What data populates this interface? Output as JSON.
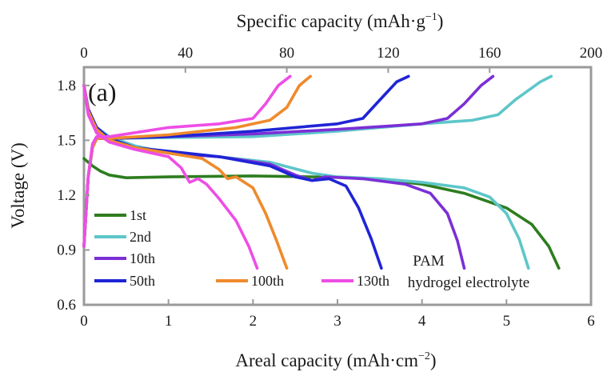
{
  "chart_data": {
    "type": "line",
    "panel_label": "(a)",
    "xlabel": "Areal capacity (mAh·cm",
    "xlabel_sup": "−2",
    "xlabel_end": ")",
    "x2label": "Specific capacity  (mAh·g",
    "x2label_sup": "−1",
    "x2label_end": ")",
    "ylabel": "Voltage (V)",
    "xlim": [
      0,
      6
    ],
    "x2lim": [
      0,
      200
    ],
    "ylim": [
      0.6,
      1.9
    ],
    "xticks": [
      0,
      1,
      2,
      3,
      4,
      5,
      6
    ],
    "x2ticks": [
      0,
      40,
      80,
      120,
      160,
      200
    ],
    "yticks": [
      "0.6",
      "0.9",
      "1.2",
      "1.5",
      "1.8"
    ],
    "annotations": [
      "PAM",
      "hydrogel electrolyte"
    ],
    "series": [
      {
        "name": "1st",
        "color": "#2e7d1f",
        "discharge": [
          [
            0,
            1.4
          ],
          [
            0.1,
            1.36
          ],
          [
            0.2,
            1.33
          ],
          [
            0.3,
            1.31
          ],
          [
            0.5,
            1.295
          ],
          [
            1,
            1.3
          ],
          [
            2,
            1.305
          ],
          [
            3,
            1.298
          ],
          [
            3.5,
            1.285
          ],
          [
            4,
            1.26
          ],
          [
            4.5,
            1.21
          ],
          [
            5,
            1.13
          ],
          [
            5.3,
            1.04
          ],
          [
            5.5,
            0.92
          ],
          [
            5.62,
            0.8
          ]
        ],
        "charge": []
      },
      {
        "name": "2nd",
        "color": "#5ec6c9",
        "discharge": [
          [
            0,
            1.8
          ],
          [
            0.05,
            1.67
          ],
          [
            0.15,
            1.57
          ],
          [
            0.3,
            1.52
          ],
          [
            0.6,
            1.47
          ],
          [
            1,
            1.43
          ],
          [
            1.6,
            1.41
          ],
          [
            2.2,
            1.38
          ],
          [
            2.7,
            1.32
          ],
          [
            3,
            1.3
          ],
          [
            3.5,
            1.29
          ],
          [
            4,
            1.27
          ],
          [
            4.5,
            1.24
          ],
          [
            4.8,
            1.19
          ],
          [
            5,
            1.1
          ],
          [
            5.15,
            0.96
          ],
          [
            5.26,
            0.8
          ]
        ],
        "charge": [
          [
            0,
            0.92
          ],
          [
            0.05,
            1.3
          ],
          [
            0.1,
            1.46
          ],
          [
            0.15,
            1.51
          ],
          [
            0.3,
            1.51
          ],
          [
            1,
            1.515
          ],
          [
            2,
            1.52
          ],
          [
            3,
            1.55
          ],
          [
            4,
            1.59
          ],
          [
            4.6,
            1.61
          ],
          [
            4.9,
            1.64
          ],
          [
            5.1,
            1.72
          ],
          [
            5.4,
            1.82
          ],
          [
            5.53,
            1.85
          ]
        ]
      },
      {
        "name": "10th",
        "color": "#7b2fd6",
        "discharge": [
          [
            0,
            1.8
          ],
          [
            0.05,
            1.67
          ],
          [
            0.15,
            1.57
          ],
          [
            0.3,
            1.51
          ],
          [
            0.6,
            1.46
          ],
          [
            1,
            1.43
          ],
          [
            1.6,
            1.41
          ],
          [
            2.2,
            1.37
          ],
          [
            2.5,
            1.31
          ],
          [
            2.7,
            1.28
          ],
          [
            2.85,
            1.3
          ],
          [
            3.3,
            1.29
          ],
          [
            3.8,
            1.26
          ],
          [
            4.1,
            1.21
          ],
          [
            4.3,
            1.1
          ],
          [
            4.42,
            0.95
          ],
          [
            4.5,
            0.8
          ]
        ],
        "charge": [
          [
            0,
            0.92
          ],
          [
            0.05,
            1.3
          ],
          [
            0.1,
            1.46
          ],
          [
            0.15,
            1.51
          ],
          [
            0.3,
            1.51
          ],
          [
            1,
            1.52
          ],
          [
            2,
            1.535
          ],
          [
            3,
            1.56
          ],
          [
            4,
            1.59
          ],
          [
            4.3,
            1.62
          ],
          [
            4.5,
            1.7
          ],
          [
            4.7,
            1.8
          ],
          [
            4.84,
            1.85
          ]
        ]
      },
      {
        "name": "50th",
        "color": "#1f24d6",
        "discharge": [
          [
            0,
            1.8
          ],
          [
            0.05,
            1.67
          ],
          [
            0.15,
            1.57
          ],
          [
            0.3,
            1.51
          ],
          [
            0.6,
            1.46
          ],
          [
            1,
            1.44
          ],
          [
            1.6,
            1.41
          ],
          [
            2.2,
            1.36
          ],
          [
            2.5,
            1.3
          ],
          [
            2.7,
            1.28
          ],
          [
            2.9,
            1.29
          ],
          [
            3.1,
            1.25
          ],
          [
            3.25,
            1.13
          ],
          [
            3.4,
            0.96
          ],
          [
            3.52,
            0.8
          ]
        ],
        "charge": [
          [
            0,
            0.92
          ],
          [
            0.05,
            1.3
          ],
          [
            0.1,
            1.46
          ],
          [
            0.15,
            1.51
          ],
          [
            0.3,
            1.51
          ],
          [
            1,
            1.52
          ],
          [
            2,
            1.55
          ],
          [
            3,
            1.59
          ],
          [
            3.3,
            1.62
          ],
          [
            3.5,
            1.72
          ],
          [
            3.7,
            1.82
          ],
          [
            3.84,
            1.85
          ]
        ]
      },
      {
        "name": "100th",
        "color": "#ef8a2c",
        "discharge": [
          [
            0,
            1.8
          ],
          [
            0.05,
            1.66
          ],
          [
            0.15,
            1.56
          ],
          [
            0.3,
            1.5
          ],
          [
            0.6,
            1.46
          ],
          [
            1,
            1.43
          ],
          [
            1.4,
            1.4
          ],
          [
            1.6,
            1.34
          ],
          [
            1.7,
            1.29
          ],
          [
            1.8,
            1.3
          ],
          [
            2.0,
            1.24
          ],
          [
            2.15,
            1.1
          ],
          [
            2.28,
            0.95
          ],
          [
            2.4,
            0.8
          ]
        ],
        "charge": [
          [
            0,
            0.92
          ],
          [
            0.05,
            1.3
          ],
          [
            0.1,
            1.46
          ],
          [
            0.15,
            1.51
          ],
          [
            0.3,
            1.51
          ],
          [
            1,
            1.53
          ],
          [
            1.8,
            1.57
          ],
          [
            2.2,
            1.61
          ],
          [
            2.4,
            1.68
          ],
          [
            2.55,
            1.8
          ],
          [
            2.68,
            1.85
          ]
        ]
      },
      {
        "name": "130th",
        "color": "#ee4de6",
        "discharge": [
          [
            0,
            1.8
          ],
          [
            0.05,
            1.64
          ],
          [
            0.15,
            1.54
          ],
          [
            0.3,
            1.49
          ],
          [
            0.6,
            1.45
          ],
          [
            1,
            1.41
          ],
          [
            1.15,
            1.35
          ],
          [
            1.25,
            1.27
          ],
          [
            1.35,
            1.29
          ],
          [
            1.45,
            1.26
          ],
          [
            1.6,
            1.18
          ],
          [
            1.8,
            1.06
          ],
          [
            1.95,
            0.92
          ],
          [
            2.05,
            0.8
          ]
        ],
        "charge": [
          [
            0,
            0.92
          ],
          [
            0.05,
            1.3
          ],
          [
            0.1,
            1.48
          ],
          [
            0.15,
            1.52
          ],
          [
            0.3,
            1.52
          ],
          [
            1,
            1.57
          ],
          [
            1.6,
            1.59
          ],
          [
            2.0,
            1.62
          ],
          [
            2.15,
            1.7
          ],
          [
            2.3,
            1.8
          ],
          [
            2.44,
            1.85
          ]
        ]
      }
    ]
  }
}
